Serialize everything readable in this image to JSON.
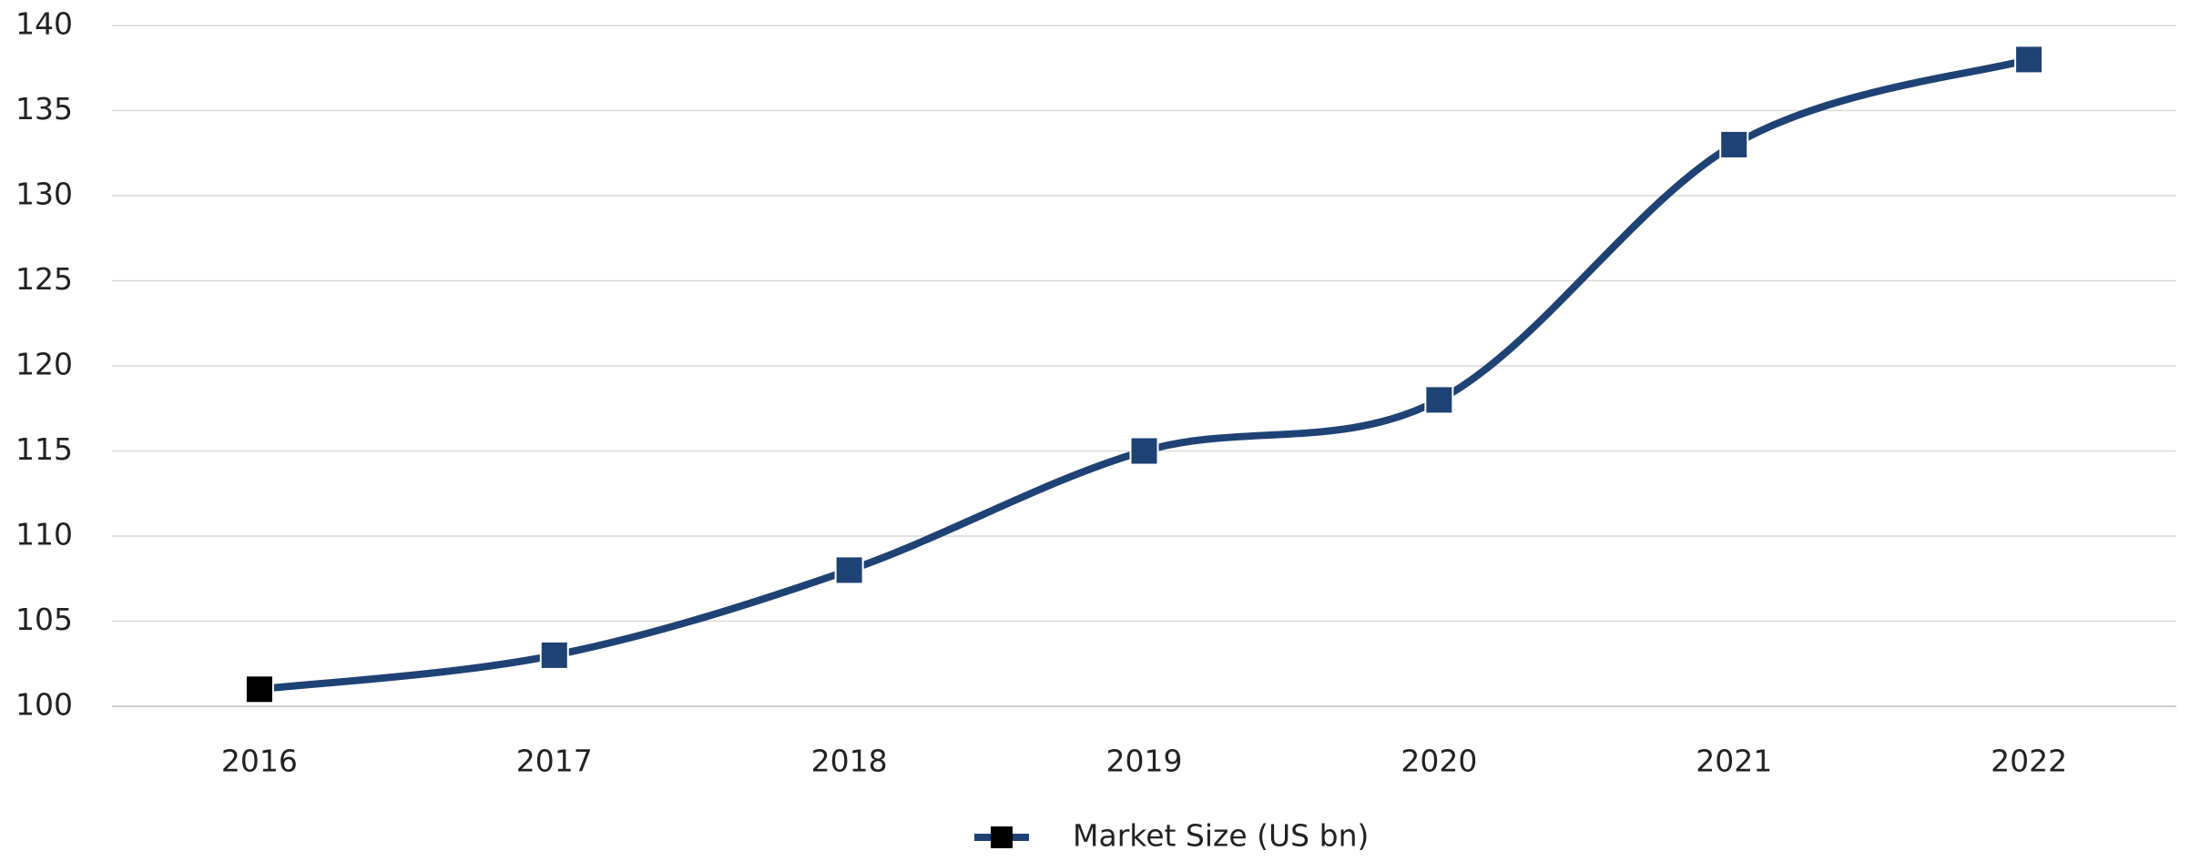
{
  "chart_data": {
    "type": "line",
    "categories": [
      "2016",
      "2017",
      "2018",
      "2019",
      "2020",
      "2021",
      "2022"
    ],
    "series": [
      {
        "name": "Market Size (US bn)",
        "color": "#1f4275",
        "marker_colors": [
          "#000000",
          "#1f4275",
          "#1f4275",
          "#1f4275",
          "#1f4275",
          "#1f4275",
          "#1f4275"
        ],
        "values": [
          101,
          103,
          108,
          115,
          118,
          133,
          138
        ]
      }
    ],
    "ylim": [
      100,
      140
    ],
    "yticks": [
      100,
      105,
      110,
      115,
      120,
      125,
      130,
      135,
      140
    ],
    "grid": true,
    "smooth": true,
    "legend": "bottom"
  }
}
